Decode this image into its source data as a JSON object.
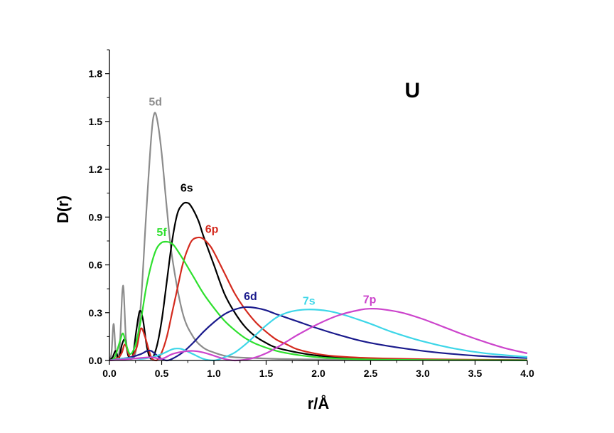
{
  "chart_data": {
    "type": "line",
    "title": "",
    "annotation": "U",
    "xlabel": "r/Å",
    "ylabel": "D(r)",
    "xlim": [
      0.0,
      4.0
    ],
    "ylim": [
      0.0,
      1.95
    ],
    "xticks": [
      0.0,
      0.5,
      1.0,
      1.5,
      2.0,
      2.5,
      3.0,
      3.5,
      4.0
    ],
    "xtick_labels": [
      "0.0",
      "0.5",
      "1.0",
      "1.5",
      "2.0",
      "2.5",
      "3.0",
      "3.5",
      "4.0"
    ],
    "yticks": [
      0.0,
      0.3,
      0.6,
      0.9,
      1.2,
      1.5,
      1.8
    ],
    "ytick_labels": [
      "0.0",
      "0.3",
      "0.6",
      "0.9",
      "1.2",
      "1.5",
      "1.8"
    ],
    "grid": false,
    "legend": "none",
    "series": [
      {
        "name": "5d",
        "color": "#8c8c8c",
        "label_pos": [
          0.44,
          1.6
        ],
        "x": [
          0,
          0.02,
          0.04,
          0.06,
          0.08,
          0.1,
          0.13,
          0.16,
          0.2,
          0.25,
          0.3,
          0.35,
          0.4,
          0.43,
          0.46,
          0.5,
          0.55,
          0.6,
          0.7,
          0.8,
          0.9,
          1.0,
          1.1,
          1.2,
          1.4,
          1.6,
          1.8,
          2.0,
          2.5,
          3.0,
          4.0
        ],
        "y": [
          0,
          0.05,
          0.23,
          0.05,
          0.02,
          0.1,
          0.47,
          0.12,
          0.02,
          0.05,
          0.35,
          0.9,
          1.4,
          1.55,
          1.5,
          1.3,
          0.95,
          0.65,
          0.3,
          0.15,
          0.08,
          0.05,
          0.03,
          0.02,
          0.015,
          0.01,
          0.008,
          0.006,
          0.004,
          0.003,
          0.002
        ]
      },
      {
        "name": "6s",
        "color": "#000000",
        "label_pos": [
          0.74,
          1.06
        ],
        "x": [
          0,
          0.03,
          0.06,
          0.09,
          0.12,
          0.15,
          0.18,
          0.22,
          0.26,
          0.29,
          0.32,
          0.36,
          0.4,
          0.45,
          0.5,
          0.55,
          0.6,
          0.65,
          0.7,
          0.74,
          0.78,
          0.85,
          0.9,
          1.0,
          1.1,
          1.2,
          1.3,
          1.4,
          1.5,
          1.6,
          1.8,
          2.0,
          2.2,
          2.5,
          3.0,
          4.0
        ],
        "y": [
          0,
          0.02,
          0.06,
          0.01,
          0.1,
          0.13,
          0.03,
          0.02,
          0.2,
          0.31,
          0.26,
          0.08,
          0.01,
          0.08,
          0.25,
          0.5,
          0.75,
          0.92,
          0.98,
          0.99,
          0.97,
          0.88,
          0.78,
          0.6,
          0.42,
          0.3,
          0.21,
          0.15,
          0.11,
          0.08,
          0.05,
          0.03,
          0.02,
          0.01,
          0.005,
          0.002
        ]
      },
      {
        "name": "6p",
        "color": "#d42a1e",
        "label_pos": [
          0.98,
          0.8
        ],
        "x": [
          0,
          0.05,
          0.09,
          0.12,
          0.15,
          0.2,
          0.26,
          0.3,
          0.34,
          0.4,
          0.45,
          0.5,
          0.55,
          0.6,
          0.65,
          0.7,
          0.75,
          0.8,
          0.88,
          0.95,
          1.0,
          1.1,
          1.2,
          1.3,
          1.4,
          1.5,
          1.6,
          1.7,
          1.8,
          2.0,
          2.2,
          2.5,
          3.0,
          4.0
        ],
        "y": [
          0,
          0.01,
          0.02,
          0.05,
          0.1,
          0.02,
          0.08,
          0.2,
          0.15,
          0.02,
          0.0,
          0.05,
          0.15,
          0.3,
          0.45,
          0.6,
          0.7,
          0.76,
          0.77,
          0.73,
          0.68,
          0.55,
          0.42,
          0.32,
          0.24,
          0.18,
          0.13,
          0.1,
          0.07,
          0.04,
          0.025,
          0.015,
          0.008,
          0.003
        ]
      },
      {
        "name": "5f",
        "color": "#2ee02e",
        "label_pos": [
          0.5,
          0.78
        ],
        "x": [
          0,
          0.05,
          0.1,
          0.13,
          0.16,
          0.2,
          0.25,
          0.3,
          0.35,
          0.4,
          0.45,
          0.5,
          0.55,
          0.58,
          0.62,
          0.7,
          0.8,
          0.9,
          1.0,
          1.1,
          1.2,
          1.3,
          1.4,
          1.6,
          1.8,
          2.0,
          2.2,
          2.5,
          3.0,
          4.0
        ],
        "y": [
          0,
          0.02,
          0.12,
          0.17,
          0.1,
          0.04,
          0.1,
          0.25,
          0.45,
          0.6,
          0.7,
          0.74,
          0.745,
          0.74,
          0.72,
          0.64,
          0.53,
          0.42,
          0.33,
          0.25,
          0.19,
          0.14,
          0.105,
          0.06,
          0.035,
          0.02,
          0.012,
          0.006,
          0.003,
          0.001
        ]
      },
      {
        "name": "6d",
        "color": "#1a1a8c",
        "label_pos": [
          1.35,
          0.38
        ],
        "x": [
          0,
          0.1,
          0.2,
          0.3,
          0.36,
          0.4,
          0.44,
          0.5,
          0.55,
          0.6,
          0.7,
          0.8,
          0.9,
          1.0,
          1.1,
          1.2,
          1.3,
          1.4,
          1.5,
          1.6,
          1.8,
          2.0,
          2.2,
          2.5,
          3.0,
          3.5,
          4.0
        ],
        "y": [
          0,
          0.01,
          0.02,
          0.04,
          0.06,
          0.06,
          0.04,
          0.01,
          0.0,
          0.01,
          0.05,
          0.11,
          0.18,
          0.24,
          0.29,
          0.32,
          0.335,
          0.33,
          0.315,
          0.29,
          0.245,
          0.2,
          0.16,
          0.11,
          0.06,
          0.03,
          0.015
        ]
      },
      {
        "name": "7s",
        "color": "#3dd6e8",
        "label_pos": [
          1.91,
          0.35
        ],
        "x": [
          0,
          0.1,
          0.2,
          0.3,
          0.4,
          0.5,
          0.6,
          0.65,
          0.7,
          0.8,
          0.9,
          1.0,
          1.1,
          1.2,
          1.3,
          1.4,
          1.5,
          1.6,
          1.7,
          1.8,
          1.9,
          2.0,
          2.1,
          2.2,
          2.3,
          2.5,
          2.7,
          3.0,
          3.3,
          3.6,
          4.0
        ],
        "y": [
          0,
          0.01,
          0.015,
          0.01,
          0.02,
          0.04,
          0.07,
          0.075,
          0.07,
          0.04,
          0.01,
          0.0,
          0.02,
          0.05,
          0.1,
          0.16,
          0.22,
          0.27,
          0.3,
          0.315,
          0.32,
          0.318,
          0.31,
          0.295,
          0.275,
          0.23,
          0.18,
          0.12,
          0.075,
          0.045,
          0.022
        ]
      },
      {
        "name": "7p",
        "color": "#cc44cc",
        "label_pos": [
          2.49,
          0.36
        ],
        "x": [
          0,
          0.2,
          0.4,
          0.5,
          0.6,
          0.7,
          0.8,
          0.9,
          1.0,
          1.1,
          1.2,
          1.3,
          1.4,
          1.5,
          1.6,
          1.7,
          1.8,
          2.0,
          2.2,
          2.4,
          2.5,
          2.6,
          2.8,
          3.0,
          3.2,
          3.4,
          3.6,
          3.8,
          4.0
        ],
        "y": [
          0,
          0.01,
          0.02,
          0.01,
          0.04,
          0.055,
          0.06,
          0.05,
          0.03,
          0.01,
          0.0,
          0.005,
          0.02,
          0.045,
          0.08,
          0.12,
          0.16,
          0.23,
          0.285,
          0.318,
          0.325,
          0.322,
          0.3,
          0.26,
          0.21,
          0.16,
          0.115,
          0.075,
          0.045
        ]
      }
    ]
  }
}
